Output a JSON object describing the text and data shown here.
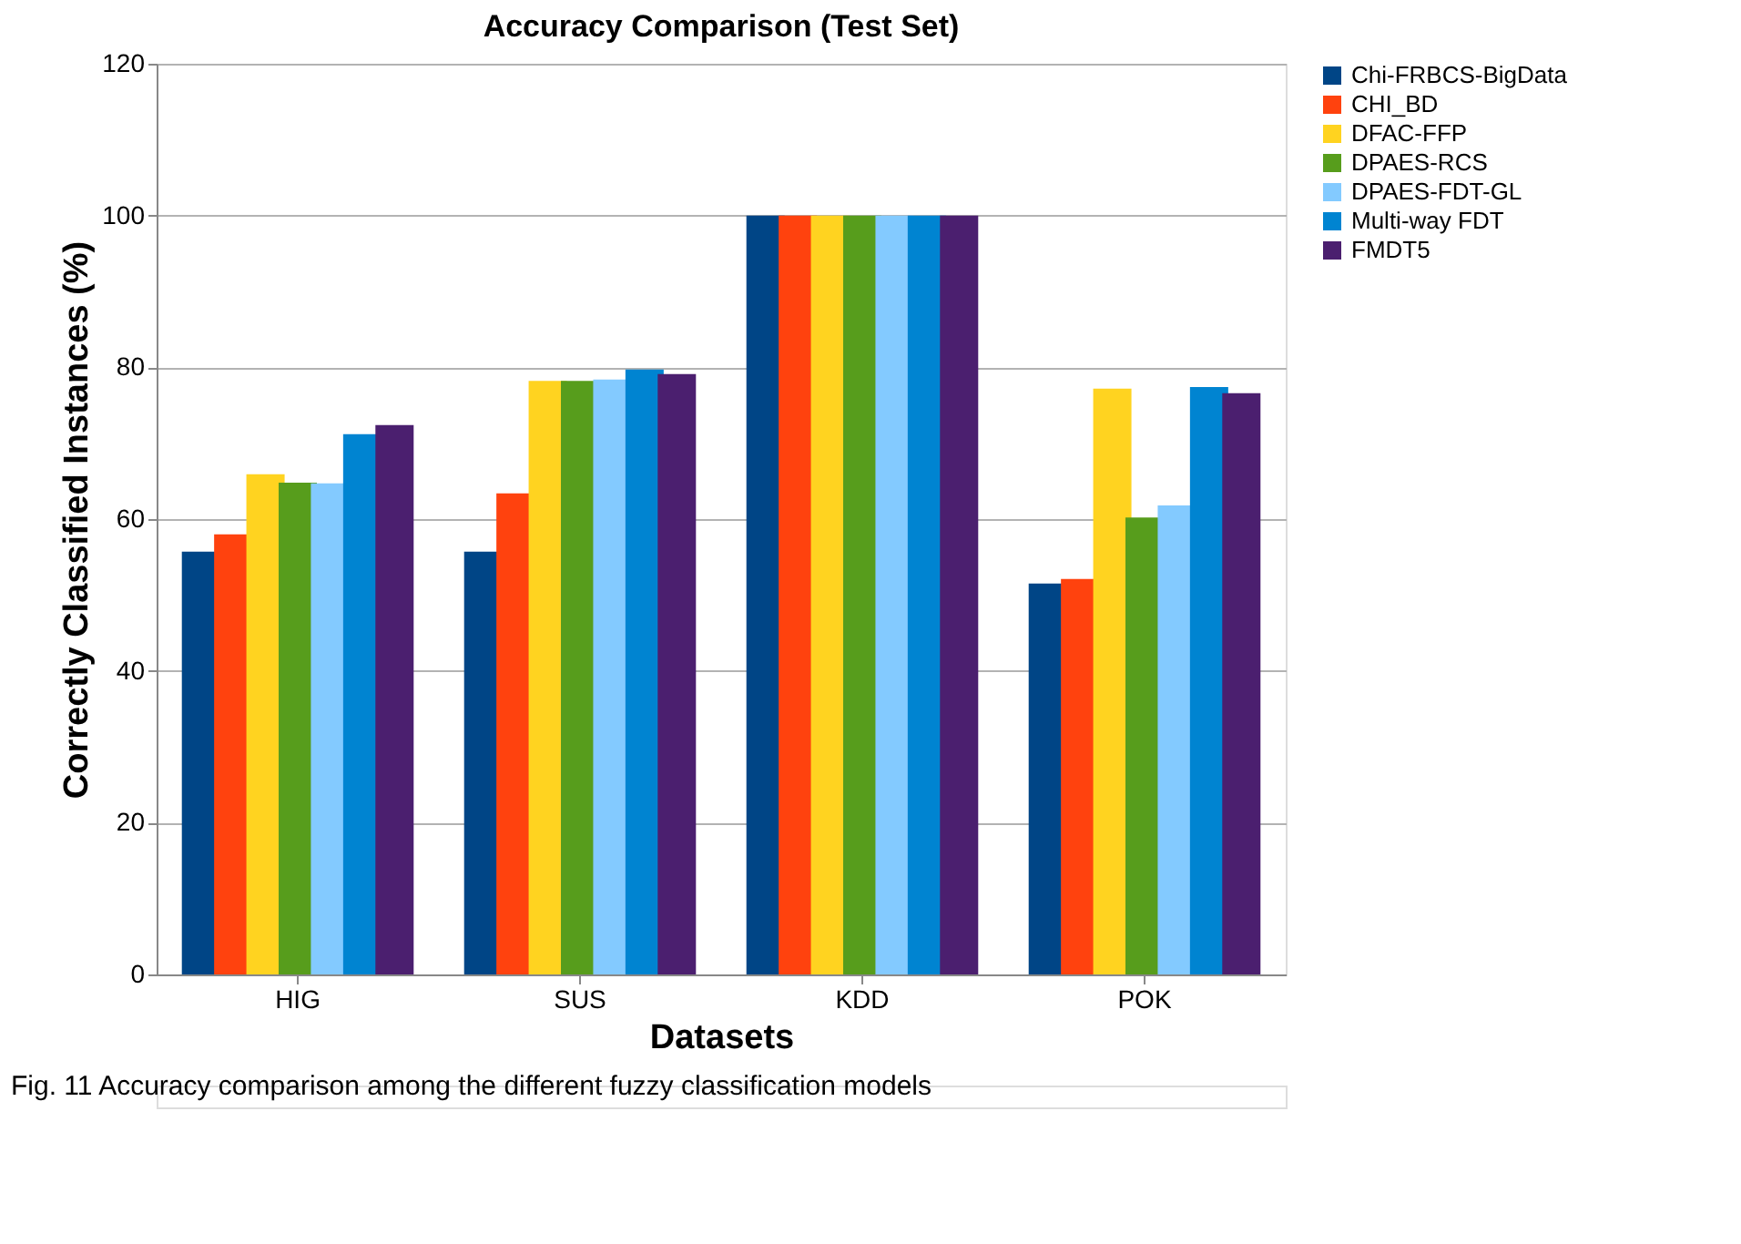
{
  "chart_data": {
    "type": "bar",
    "title": "Accuracy Comparison (Test Set)",
    "xlabel": "Datasets",
    "ylabel": "Correctly Classified Instances (%)",
    "categories": [
      "HIG",
      "SUS",
      "KDD",
      "POK"
    ],
    "series": [
      {
        "name": "Chi-FRBCS-BigData",
        "color": "#004586",
        "values": [
          55.7,
          55.7,
          100,
          51.5
        ]
      },
      {
        "name": "CHI_BD",
        "color": "#ff420e",
        "values": [
          58.0,
          63.4,
          100,
          52.1
        ]
      },
      {
        "name": "DFAC-FFP",
        "color": "#ffd320",
        "values": [
          65.9,
          78.2,
          100,
          77.2
        ]
      },
      {
        "name": "DPAES-RCS",
        "color": "#579d1c",
        "values": [
          64.8,
          78.2,
          100,
          60.2
        ]
      },
      {
        "name": "DPAES-FDT-GL",
        "color": "#83caff",
        "values": [
          64.7,
          78.4,
          100,
          61.8
        ]
      },
      {
        "name": "Multi-way FDT",
        "color": "#0084d1",
        "values": [
          71.2,
          79.7,
          100,
          77.4
        ]
      },
      {
        "name": "FMDT5",
        "color": "#4b1f6f",
        "values": [
          72.4,
          79.1,
          100,
          76.6
        ]
      }
    ],
    "ylim": [
      0,
      120
    ],
    "yticks": [
      0,
      20,
      40,
      60,
      80,
      100,
      120
    ],
    "grid": "y",
    "legend": "right",
    "annotations": [
      "Fig. 11  Accuracy comparison among the different fuzzy classification models"
    ]
  }
}
